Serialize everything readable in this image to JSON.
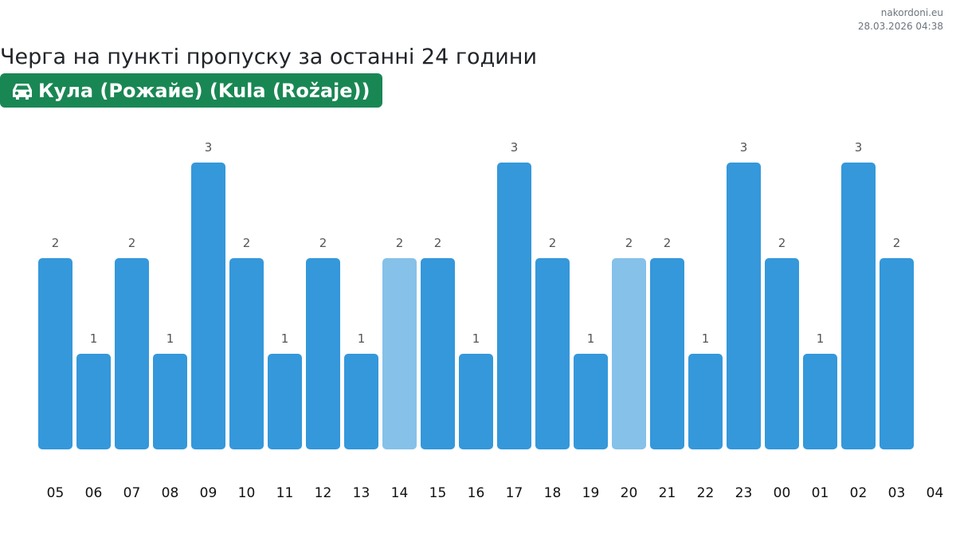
{
  "source": {
    "site": "nakordoni.eu",
    "timestamp": "28.03.2026 04:38"
  },
  "title": "Черга на пункті пропуску за останні 24 години",
  "badge": {
    "icon": "car-icon",
    "label": "Кула (Рожайе) (Kula (Rožaje))"
  },
  "colors": {
    "bar": "#3498db",
    "bar_light": "#85c1e9",
    "badge": "#198754"
  },
  "chart_data": {
    "type": "bar",
    "title": "",
    "xlabel": "",
    "ylabel": "",
    "categories": [
      "05",
      "06",
      "07",
      "08",
      "09",
      "10",
      "11",
      "12",
      "13",
      "14",
      "15",
      "16",
      "17",
      "18",
      "19",
      "20",
      "21",
      "22",
      "23",
      "00",
      "01",
      "02",
      "03",
      "04"
    ],
    "values": [
      2,
      1,
      2,
      1,
      3,
      2,
      1,
      2,
      1,
      2,
      2,
      1,
      3,
      2,
      1,
      2,
      2,
      1,
      3,
      2,
      1,
      3,
      2,
      null
    ],
    "highlighted_categories": [
      "14",
      "20"
    ],
    "ylim": [
      0,
      3
    ],
    "grid": false,
    "legend": "none"
  }
}
